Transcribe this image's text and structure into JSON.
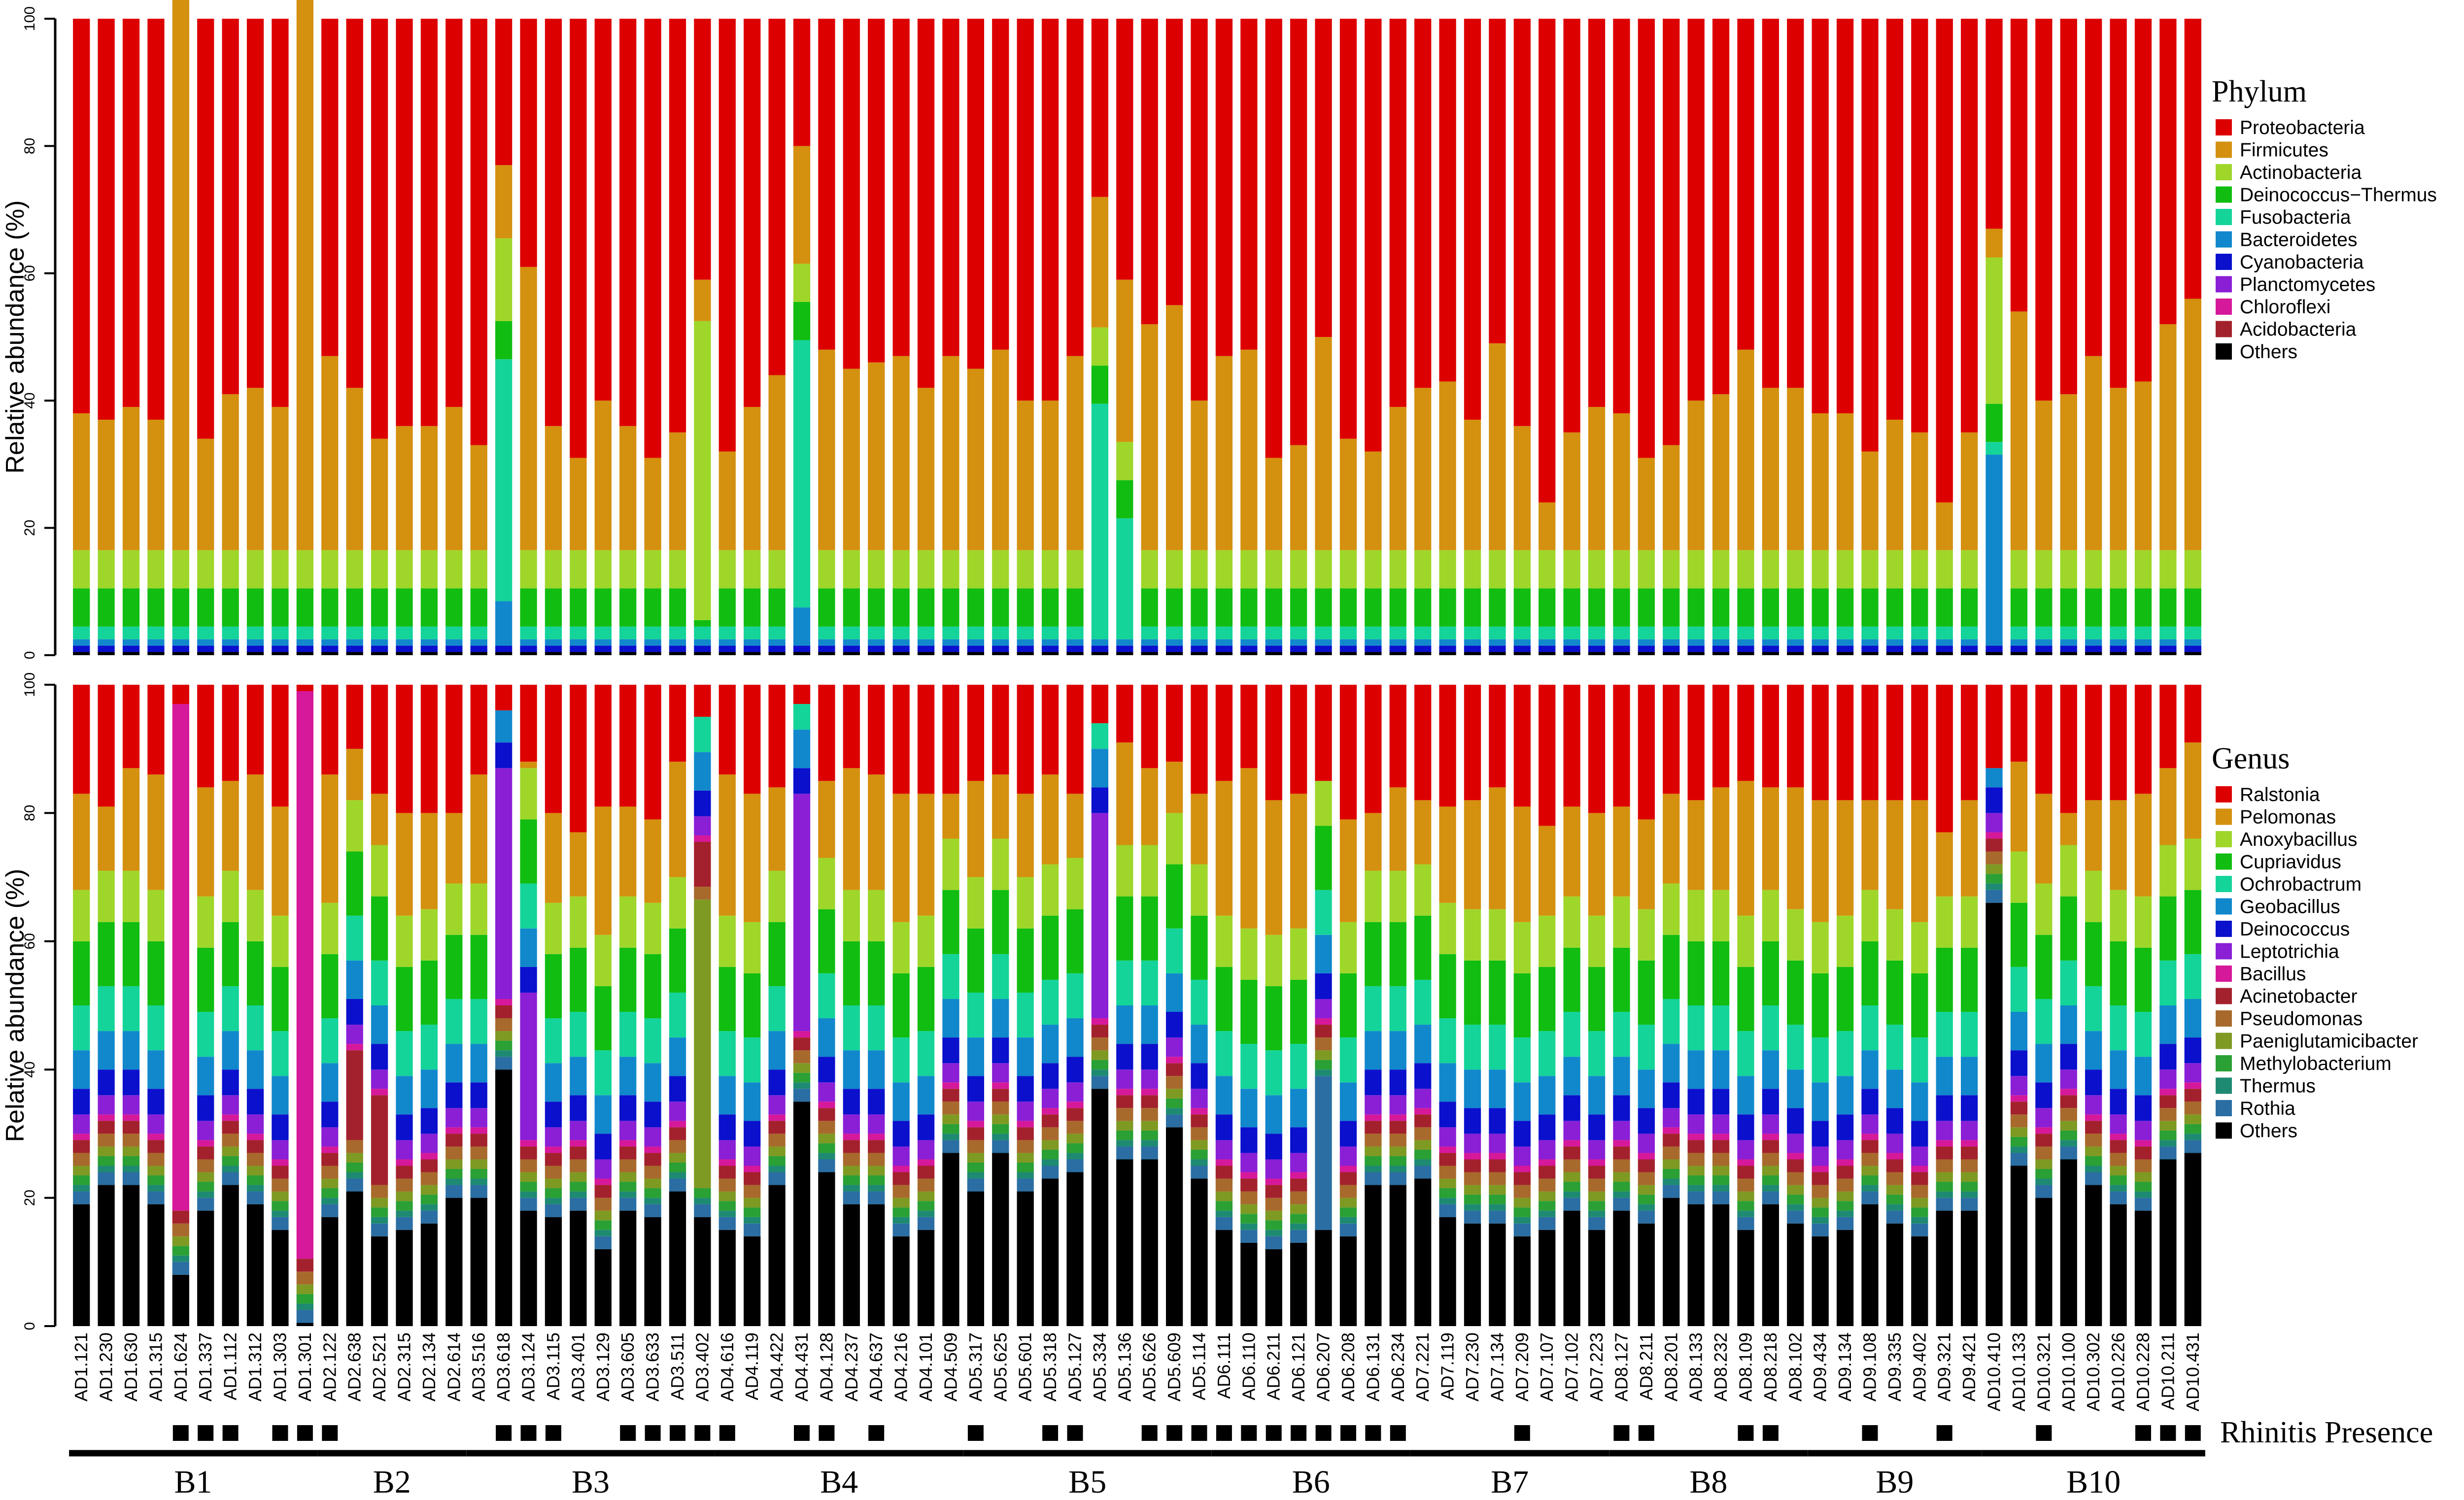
{
  "chart_data": [
    {
      "type": "stacked-bar",
      "ylabel": "Relative abundance (%)",
      "ylim": [
        0,
        100
      ],
      "yticks": [
        0,
        20,
        40,
        60,
        80,
        100
      ],
      "legend_title": "Phylum",
      "legend_placement": "right",
      "series": [
        {
          "name": "Proteobacteria",
          "color": "#dd0000"
        },
        {
          "name": "Firmicutes",
          "color": "#d4900f"
        },
        {
          "name": "Actinobacteria",
          "color": "#9fd62a"
        },
        {
          "name": "Deinococcus−Thermus",
          "color": "#11bd11"
        },
        {
          "name": "Fusobacteria",
          "color": "#14d49a"
        },
        {
          "name": "Bacteroidetes",
          "color": "#1188cc"
        },
        {
          "name": "Cyanobacteria",
          "color": "#0a10cc"
        },
        {
          "name": "Planctomycetes",
          "color": "#8a1fd6"
        },
        {
          "name": "Chloroflexi",
          "color": "#d6189a"
        },
        {
          "name": "Acidobacteria",
          "color": "#a3212c"
        },
        {
          "name": "Others",
          "color": "#000000"
        }
      ],
      "reading_note": "Most bars follow a shared profile (others ~0.5, Cyanobacteria ~1, Bacteroidetes ~1, Fusobacteria ~2, Deinococcus-Thermus ~6, Actinobacteria ~6, Firmicutes fills to the listed top, Proteobacteria remainder); bars listed in overrides have specific segments."
    },
    {
      "type": "stacked-bar",
      "ylabel": "Relative abundance (%)",
      "ylim": [
        0,
        100
      ],
      "yticks": [
        0,
        20,
        40,
        60,
        80,
        100
      ],
      "legend_title": "Genus",
      "legend_placement": "right",
      "series": [
        {
          "name": "Ralstonia",
          "color": "#dd0000"
        },
        {
          "name": "Pelomonas",
          "color": "#d4900f"
        },
        {
          "name": "Anoxybacillus",
          "color": "#9fd62a"
        },
        {
          "name": "Cupriavidus",
          "color": "#11bd11"
        },
        {
          "name": "Ochrobactrum",
          "color": "#14d49a"
        },
        {
          "name": "Geobacillus",
          "color": "#1188cc"
        },
        {
          "name": "Deinococcus",
          "color": "#0a10cc"
        },
        {
          "name": "Leptotrichia",
          "color": "#8a1fd6"
        },
        {
          "name": "Bacillus",
          "color": "#d6189a"
        },
        {
          "name": "Acinetobacter",
          "color": "#a3212c"
        },
        {
          "name": "Pseudomonas",
          "color": "#a86a2c"
        },
        {
          "name": "Paeniglutamicibacter",
          "color": "#7e9a22"
        },
        {
          "name": "Methylobacterium",
          "color": "#2aa035"
        },
        {
          "name": "Thermus",
          "color": "#1e8a72"
        },
        {
          "name": "Rothia",
          "color": "#2a6ea3"
        },
        {
          "name": "Others",
          "color": "#000000"
        }
      ]
    }
  ],
  "samples": [
    {
      "id": "AD1.121",
      "group": "B1",
      "rhinitis": false,
      "p_top": 38,
      "g_oth": 19,
      "g_ral": 17
    },
    {
      "id": "AD1.230",
      "group": "B1",
      "rhinitis": false,
      "p_top": 37,
      "g_oth": 22,
      "g_ral": 19
    },
    {
      "id": "AD1.630",
      "group": "B1",
      "rhinitis": false,
      "p_top": 39,
      "g_oth": 22,
      "g_ral": 13
    },
    {
      "id": "AD1.315",
      "group": "B1",
      "rhinitis": false,
      "p_top": 37,
      "g_oth": 19,
      "g_ral": 14
    },
    {
      "id": "AD1.624",
      "group": "B1",
      "rhinitis": true,
      "p_top": 89,
      "g_oth": 8,
      "g_ral": 3
    },
    {
      "id": "AD1.337",
      "group": "B1",
      "rhinitis": true,
      "p_top": 34,
      "g_oth": 18,
      "g_ral": 16
    },
    {
      "id": "AD1.112",
      "group": "B1",
      "rhinitis": true,
      "p_top": 41,
      "g_oth": 22,
      "g_ral": 15
    },
    {
      "id": "AD1.312",
      "group": "B1",
      "rhinitis": false,
      "p_top": 42,
      "g_oth": 19,
      "g_ral": 14
    },
    {
      "id": "AD1.303",
      "group": "B1",
      "rhinitis": true,
      "p_top": 39,
      "g_oth": 15,
      "g_ral": 19
    },
    {
      "id": "AD1.301",
      "group": "B1",
      "rhinitis": true,
      "p_top": 97,
      "g_oth": 0.5,
      "g_ral": 1
    },
    {
      "id": "AD2.122",
      "group": "B2",
      "rhinitis": true,
      "p_top": 47,
      "g_oth": 17,
      "g_ral": 14
    },
    {
      "id": "AD2.638",
      "group": "B2",
      "rhinitis": false,
      "p_top": 42,
      "g_oth": 21,
      "g_ral": 10
    },
    {
      "id": "AD2.521",
      "group": "B2",
      "rhinitis": false,
      "p_top": 34,
      "g_oth": 14,
      "g_ral": 17
    },
    {
      "id": "AD2.315",
      "group": "B2",
      "rhinitis": false,
      "p_top": 36,
      "g_oth": 15,
      "g_ral": 20
    },
    {
      "id": "AD2.134",
      "group": "B2",
      "rhinitis": false,
      "p_top": 36,
      "g_oth": 16,
      "g_ral": 20
    },
    {
      "id": "AD2.614",
      "group": "B2",
      "rhinitis": false,
      "p_top": 39,
      "g_oth": 20,
      "g_ral": 20
    },
    {
      "id": "AD3.516",
      "group": "B3",
      "rhinitis": false,
      "p_top": 33,
      "g_oth": 20,
      "g_ral": 14
    },
    {
      "id": "AD3.618",
      "group": "B3",
      "rhinitis": true,
      "p_top": 77,
      "g_oth": 40,
      "g_ral": 4
    },
    {
      "id": "AD3.124",
      "group": "B3",
      "rhinitis": true,
      "p_top": 61,
      "g_oth": 18,
      "g_ral": 12
    },
    {
      "id": "AD3.115",
      "group": "B3",
      "rhinitis": true,
      "p_top": 36,
      "g_oth": 17,
      "g_ral": 20
    },
    {
      "id": "AD3.401",
      "group": "B3",
      "rhinitis": false,
      "p_top": 31,
      "g_oth": 18,
      "g_ral": 23
    },
    {
      "id": "AD3.129",
      "group": "B3",
      "rhinitis": false,
      "p_top": 40,
      "g_oth": 12,
      "g_ral": 19
    },
    {
      "id": "AD3.605",
      "group": "B3",
      "rhinitis": true,
      "p_top": 36,
      "g_oth": 18,
      "g_ral": 19
    },
    {
      "id": "AD3.633",
      "group": "B3",
      "rhinitis": true,
      "p_top": 31,
      "g_oth": 17,
      "g_ral": 21
    },
    {
      "id": "AD3.511",
      "group": "B3",
      "rhinitis": true,
      "p_top": 35,
      "g_oth": 21,
      "g_ral": 12
    },
    {
      "id": "AD3.402",
      "group": "B3",
      "rhinitis": true,
      "p_top": 59,
      "g_oth": 17,
      "g_ral": 5
    },
    {
      "id": "AD4.616",
      "group": "B4",
      "rhinitis": true,
      "p_top": 32,
      "g_oth": 15,
      "g_ral": 14
    },
    {
      "id": "AD4.119",
      "group": "B4",
      "rhinitis": false,
      "p_top": 39,
      "g_oth": 14,
      "g_ral": 17
    },
    {
      "id": "AD4.422",
      "group": "B4",
      "rhinitis": false,
      "p_top": 44,
      "g_oth": 22,
      "g_ral": 16
    },
    {
      "id": "AD4.431",
      "group": "B4",
      "rhinitis": true,
      "p_top": 80,
      "g_oth": 35,
      "g_ral": 3
    },
    {
      "id": "AD4.128",
      "group": "B4",
      "rhinitis": true,
      "p_top": 48,
      "g_oth": 24,
      "g_ral": 15
    },
    {
      "id": "AD4.237",
      "group": "B4",
      "rhinitis": false,
      "p_top": 45,
      "g_oth": 19,
      "g_ral": 13
    },
    {
      "id": "AD4.637",
      "group": "B4",
      "rhinitis": true,
      "p_top": 46,
      "g_oth": 19,
      "g_ral": 14
    },
    {
      "id": "AD4.216",
      "group": "B4",
      "rhinitis": false,
      "p_top": 47,
      "g_oth": 14,
      "g_ral": 17
    },
    {
      "id": "AD4.101",
      "group": "B4",
      "rhinitis": false,
      "p_top": 42,
      "g_oth": 15,
      "g_ral": 17
    },
    {
      "id": "AD4.509",
      "group": "B4",
      "rhinitis": false,
      "p_top": 47,
      "g_oth": 27,
      "g_ral": 17
    },
    {
      "id": "AD5.317",
      "group": "B5",
      "rhinitis": true,
      "p_top": 45,
      "g_oth": 21,
      "g_ral": 15
    },
    {
      "id": "AD5.625",
      "group": "B5",
      "rhinitis": false,
      "p_top": 48,
      "g_oth": 27,
      "g_ral": 14
    },
    {
      "id": "AD5.601",
      "group": "B5",
      "rhinitis": false,
      "p_top": 40,
      "g_oth": 21,
      "g_ral": 17
    },
    {
      "id": "AD5.318",
      "group": "B5",
      "rhinitis": true,
      "p_top": 40,
      "g_oth": 23,
      "g_ral": 14
    },
    {
      "id": "AD5.127",
      "group": "B5",
      "rhinitis": true,
      "p_top": 47,
      "g_oth": 24,
      "g_ral": 17
    },
    {
      "id": "AD5.334",
      "group": "B5",
      "rhinitis": false,
      "p_top": 72,
      "g_oth": 37,
      "g_ral": 6
    },
    {
      "id": "AD5.136",
      "group": "B5",
      "rhinitis": false,
      "p_top": 59,
      "g_oth": 26,
      "g_ral": 9
    },
    {
      "id": "AD5.626",
      "group": "B5",
      "rhinitis": true,
      "p_top": 52,
      "g_oth": 26,
      "g_ral": 13
    },
    {
      "id": "AD5.609",
      "group": "B5",
      "rhinitis": true,
      "p_top": 55,
      "g_oth": 31,
      "g_ral": 12
    },
    {
      "id": "AD5.114",
      "group": "B5",
      "rhinitis": true,
      "p_top": 40,
      "g_oth": 23,
      "g_ral": 17
    },
    {
      "id": "AD6.111",
      "group": "B6",
      "rhinitis": true,
      "p_top": 47,
      "g_oth": 15,
      "g_ral": 15
    },
    {
      "id": "AD6.110",
      "group": "B6",
      "rhinitis": true,
      "p_top": 48,
      "g_oth": 13,
      "g_ral": 13
    },
    {
      "id": "AD6.211",
      "group": "B6",
      "rhinitis": true,
      "p_top": 31,
      "g_oth": 12,
      "g_ral": 18
    },
    {
      "id": "AD6.121",
      "group": "B6",
      "rhinitis": true,
      "p_top": 33,
      "g_oth": 13,
      "g_ral": 17
    },
    {
      "id": "AD6.207",
      "group": "B6",
      "rhinitis": true,
      "p_top": 50,
      "g_oth": 15,
      "g_ral": 15
    },
    {
      "id": "AD6.208",
      "group": "B6",
      "rhinitis": true,
      "p_top": 34,
      "g_oth": 14,
      "g_ral": 21
    },
    {
      "id": "AD6.131",
      "group": "B6",
      "rhinitis": true,
      "p_top": 32,
      "g_oth": 22,
      "g_ral": 20
    },
    {
      "id": "AD6.234",
      "group": "B6",
      "rhinitis": true,
      "p_top": 39,
      "g_oth": 22,
      "g_ral": 16
    },
    {
      "id": "AD7.221",
      "group": "B7",
      "rhinitis": false,
      "p_top": 42,
      "g_oth": 23,
      "g_ral": 18
    },
    {
      "id": "AD7.119",
      "group": "B7",
      "rhinitis": false,
      "p_top": 43,
      "g_oth": 17,
      "g_ral": 19
    },
    {
      "id": "AD7.230",
      "group": "B7",
      "rhinitis": false,
      "p_top": 37,
      "g_oth": 16,
      "g_ral": 18
    },
    {
      "id": "AD7.134",
      "group": "B7",
      "rhinitis": false,
      "p_top": 49,
      "g_oth": 16,
      "g_ral": 16
    },
    {
      "id": "AD7.209",
      "group": "B7",
      "rhinitis": true,
      "p_top": 36,
      "g_oth": 14,
      "g_ral": 19
    },
    {
      "id": "AD7.107",
      "group": "B7",
      "rhinitis": false,
      "p_top": 24,
      "g_oth": 15,
      "g_ral": 22
    },
    {
      "id": "AD7.102",
      "group": "B7",
      "rhinitis": false,
      "p_top": 35,
      "g_oth": 18,
      "g_ral": 19
    },
    {
      "id": "AD7.223",
      "group": "B7",
      "rhinitis": false,
      "p_top": 39,
      "g_oth": 15,
      "g_ral": 20
    },
    {
      "id": "AD8.127",
      "group": "B8",
      "rhinitis": true,
      "p_top": 38,
      "g_oth": 18,
      "g_ral": 19
    },
    {
      "id": "AD8.211",
      "group": "B8",
      "rhinitis": true,
      "p_top": 31,
      "g_oth": 16,
      "g_ral": 21
    },
    {
      "id": "AD8.201",
      "group": "B8",
      "rhinitis": false,
      "p_top": 33,
      "g_oth": 20,
      "g_ral": 17
    },
    {
      "id": "AD8.133",
      "group": "B8",
      "rhinitis": false,
      "p_top": 40,
      "g_oth": 19,
      "g_ral": 18
    },
    {
      "id": "AD8.232",
      "group": "B8",
      "rhinitis": false,
      "p_top": 41,
      "g_oth": 19,
      "g_ral": 16
    },
    {
      "id": "AD8.109",
      "group": "B8",
      "rhinitis": true,
      "p_top": 48,
      "g_oth": 15,
      "g_ral": 15
    },
    {
      "id": "AD8.218",
      "group": "B8",
      "rhinitis": true,
      "p_top": 42,
      "g_oth": 19,
      "g_ral": 16
    },
    {
      "id": "AD8.102",
      "group": "B8",
      "rhinitis": false,
      "p_top": 42,
      "g_oth": 16,
      "g_ral": 16
    },
    {
      "id": "AD9.434",
      "group": "B9",
      "rhinitis": false,
      "p_top": 38,
      "g_oth": 14,
      "g_ral": 18
    },
    {
      "id": "AD9.134",
      "group": "B9",
      "rhinitis": false,
      "p_top": 38,
      "g_oth": 15,
      "g_ral": 18
    },
    {
      "id": "AD9.108",
      "group": "B9",
      "rhinitis": true,
      "p_top": 32,
      "g_oth": 19,
      "g_ral": 18
    },
    {
      "id": "AD9.335",
      "group": "B9",
      "rhinitis": false,
      "p_top": 37,
      "g_oth": 16,
      "g_ral": 18
    },
    {
      "id": "AD9.402",
      "group": "B9",
      "rhinitis": false,
      "p_top": 35,
      "g_oth": 14,
      "g_ral": 18
    },
    {
      "id": "AD9.321",
      "group": "B9",
      "rhinitis": true,
      "p_top": 24,
      "g_oth": 18,
      "g_ral": 23
    },
    {
      "id": "AD9.421",
      "group": "B9",
      "rhinitis": false,
      "p_top": 35,
      "g_oth": 18,
      "g_ral": 18
    },
    {
      "id": "AD10.410",
      "group": "B10",
      "rhinitis": false,
      "p_top": 67,
      "g_oth": 66,
      "g_ral": 13
    },
    {
      "id": "AD10.133",
      "group": "B10",
      "rhinitis": false,
      "p_top": 54,
      "g_oth": 25,
      "g_ral": 12
    },
    {
      "id": "AD10.321",
      "group": "B10",
      "rhinitis": true,
      "p_top": 40,
      "g_oth": 20,
      "g_ral": 17
    },
    {
      "id": "AD10.100",
      "group": "B10",
      "rhinitis": false,
      "p_top": 41,
      "g_oth": 26,
      "g_ral": 20
    },
    {
      "id": "AD10.302",
      "group": "B10",
      "rhinitis": false,
      "p_top": 47,
      "g_oth": 22,
      "g_ral": 18
    },
    {
      "id": "AD10.226",
      "group": "B10",
      "rhinitis": false,
      "p_top": 42,
      "g_oth": 19,
      "g_ral": 18
    },
    {
      "id": "AD10.228",
      "group": "B10",
      "rhinitis": true,
      "p_top": 43,
      "g_oth": 18,
      "g_ral": 17
    },
    {
      "id": "AD10.211",
      "group": "B10",
      "rhinitis": true,
      "p_top": 52,
      "g_oth": 26,
      "g_ral": 13
    },
    {
      "id": "AD10.431",
      "group": "B10",
      "rhinitis": true,
      "p_top": 56,
      "g_oth": 27,
      "g_ral": 9
    }
  ],
  "phylum_overrides": {
    "AD1.624": {
      "Firmicutes": 89
    },
    "AD1.301": {
      "Firmicutes": 97
    },
    "AD3.618": {
      "Fusobacteria": 38,
      "Bacteroidetes": 7,
      "Actinobacteria": 13
    },
    "AD3.402": {
      "Actinobacteria": 47,
      "Deinococcus−Thermus": 1
    },
    "AD4.431": {
      "Fusobacteria": 42,
      "Bacteroidetes": 6
    },
    "AD5.334": {
      "Fusobacteria": 37
    },
    "AD5.136": {
      "Fusobacteria": 19
    },
    "AD10.410": {
      "Bacteroidetes": 30,
      "Actinobacteria": 23
    }
  },
  "genus_overrides": {
    "AD1.624": {
      "Bacillus": 82
    },
    "AD1.301": {
      "Bacillus": 97
    },
    "AD3.618": {
      "Leptotrichia": 36
    },
    "AD3.124": {
      "Leptotrichia": 23
    },
    "AD3.402": {
      "Paeniglutamicibacter": 45,
      "Acinetobacter": 7
    },
    "AD4.431": {
      "Leptotrichia": 37
    },
    "AD5.334": {
      "Leptotrichia": 32
    },
    "AD6.207": {
      "Rothia": 24
    },
    "AD2.638": {
      "Acinetobacter": 14
    },
    "AD2.521": {
      "Acinetobacter": 14
    }
  },
  "rhinitis_label": "Rhinitis Presence",
  "groups": [
    "B1",
    "B2",
    "B3",
    "B4",
    "B5",
    "B6",
    "B7",
    "B8",
    "B9",
    "B10"
  ]
}
